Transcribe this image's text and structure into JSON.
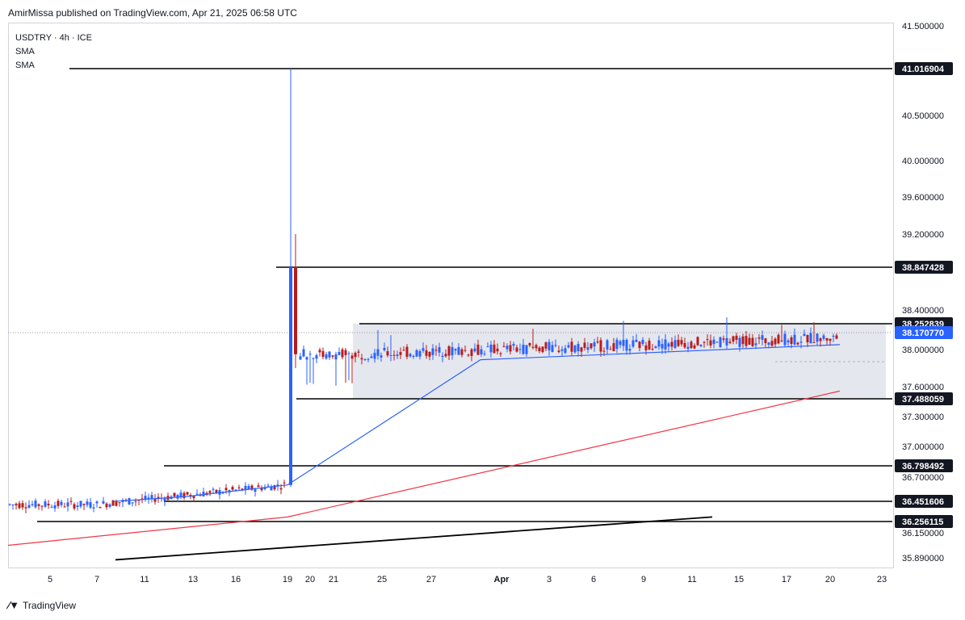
{
  "header": {
    "published": "AmirMissa published on TradingView.com, Apr 21, 2025 06:58 UTC"
  },
  "legend": {
    "symbol": "USDTRY · 4h · ICE",
    "indicators": [
      "SMA",
      "SMA"
    ]
  },
  "footer": {
    "logo_text": "TradingView"
  },
  "colors": {
    "up": "#2962ff",
    "down": "#b71c1c",
    "sma_fast": "#2962ff",
    "sma_slow": "#f23645",
    "trendline": "#000000",
    "range_box": "#e0e3eb"
  },
  "chart_data": {
    "type": "candlestick",
    "symbol": "USDTRY",
    "timeframe": "4h",
    "y_axis": {
      "ticks": [
        "41.500000",
        "40.500000",
        "40.000000",
        "39.600000",
        "39.200000",
        "38.400000",
        "38.000000",
        "37.600000",
        "37.300000",
        "37.000000",
        "36.700000",
        "36.150000",
        "35.890000"
      ],
      "labels_highlighted": [
        {
          "text": "41.016904",
          "style": "dark"
        },
        {
          "text": "38.847428",
          "style": "dark"
        },
        {
          "text": "38.252839",
          "style": "dark"
        },
        {
          "text": "38.170770",
          "style": "blue"
        },
        {
          "text": "37.488059",
          "style": "dark"
        },
        {
          "text": "36.798492",
          "style": "dark"
        },
        {
          "text": "36.451606",
          "style": "dark"
        },
        {
          "text": "36.256115",
          "style": "dark"
        }
      ]
    },
    "x_axis": {
      "ticks": [
        "5",
        "7",
        "11",
        "13",
        "16",
        "19",
        "20",
        "21",
        "25",
        "27",
        "Apr",
        "3",
        "6",
        "9",
        "11",
        "15",
        "17",
        "20",
        "23"
      ]
    },
    "horizontal_levels": [
      {
        "value": 41.016904,
        "x_start_index": 1
      },
      {
        "value": 38.847428,
        "x_start_index": 5
      },
      {
        "value": 38.252839,
        "x_start_index": 8
      },
      {
        "value": 37.488059,
        "x_start_index": 6
      },
      {
        "value": 36.798492,
        "x_start_index": 3
      },
      {
        "value": 36.451606,
        "x_start_index": 3
      },
      {
        "value": 36.256115,
        "x_start_index": 0
      }
    ],
    "range_box": {
      "top": 38.252839,
      "bottom": 37.488059
    },
    "last_price": 38.17077,
    "series": [
      {
        "kind": "candles",
        "ohlc_note": "range 36.3–36.6 before spike on 19; spike to 41.016904; consolidation 37.49–38.25 afterward"
      },
      {
        "kind": "sma_fast",
        "points": [
          [
            0,
            36.45
          ],
          [
            4,
            36.5
          ],
          [
            5,
            36.62
          ],
          [
            8,
            37.89
          ],
          [
            17,
            38.05
          ]
        ]
      },
      {
        "kind": "sma_slow",
        "points": [
          [
            0,
            36.02
          ],
          [
            5,
            36.3
          ],
          [
            17,
            37.56
          ]
        ]
      },
      {
        "kind": "trendline",
        "points": [
          [
            1,
            35.87
          ],
          [
            13,
            36.3
          ]
        ]
      }
    ]
  }
}
